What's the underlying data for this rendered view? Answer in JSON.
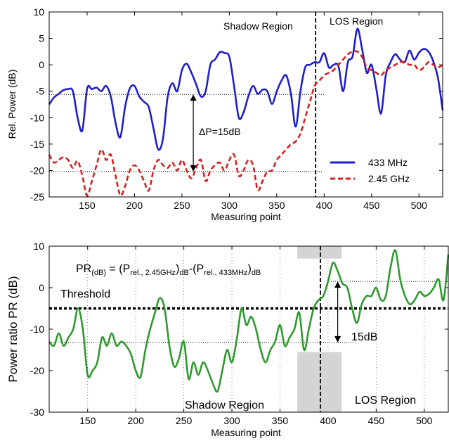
{
  "colors": {
    "blue": "#1f1fc8",
    "red": "#d42020",
    "green": "#2e9a2e",
    "shade": "#d4d4d4"
  },
  "chart_data": [
    {
      "type": "line",
      "xlabel": "Measuring point",
      "ylabel": "Rel. Power (dB)",
      "xlim": [
        110,
        525
      ],
      "ylim": [
        -25,
        10
      ],
      "xticks": [
        150,
        200,
        250,
        300,
        350,
        400,
        450,
        500
      ],
      "yticks": [
        -25,
        -20,
        -15,
        -10,
        -5,
        0,
        5,
        10
      ],
      "grid": false,
      "legend": "bottom-right",
      "annotations": {
        "shadow": "Shadow Region",
        "los": "LOS Region",
        "deltap": "ΔP=15dB"
      },
      "reference_lines": {
        "upper_y": -5.6,
        "lower_y": -20.2,
        "boundary_x": 391
      },
      "series": [
        {
          "name": "433 MHz",
          "color": "#1f1fc8",
          "style": "solid",
          "x": [
            110,
            115,
            120,
            125,
            130,
            135,
            140,
            145,
            150,
            155,
            160,
            165,
            170,
            175,
            180,
            185,
            190,
            195,
            200,
            205,
            210,
            215,
            220,
            225,
            230,
            235,
            240,
            245,
            250,
            255,
            260,
            265,
            270,
            275,
            280,
            285,
            290,
            295,
            300,
            305,
            310,
            315,
            320,
            325,
            330,
            335,
            340,
            345,
            350,
            355,
            360,
            365,
            370,
            375,
            380,
            385,
            390,
            395,
            400,
            405,
            410,
            415,
            420,
            425,
            430,
            435,
            440,
            445,
            450,
            455,
            460,
            465,
            470,
            475,
            480,
            485,
            490,
            495,
            500,
            505,
            510,
            515,
            520,
            525
          ],
          "y": [
            -7.5,
            -6.2,
            -5.5,
            -4.8,
            -4.6,
            -5,
            -10,
            -12.4,
            -4.5,
            -4.6,
            -4.3,
            -5,
            -4,
            -6,
            -11,
            -13.7,
            -8,
            -4.5,
            -4,
            -6,
            -7,
            -8,
            -12,
            -16,
            -14,
            -6,
            -3.5,
            -5,
            -1,
            0.2,
            -1.5,
            -3.7,
            -6,
            -5,
            0,
            1,
            2.4,
            2.2,
            1.5,
            -4,
            -10,
            -9,
            -6,
            -4,
            -5.5,
            -4.7,
            -5,
            -7.4,
            -5,
            -3,
            -2,
            -5.5,
            -11.7,
            -5,
            -0.5,
            0,
            0.5,
            0.5,
            2.2,
            -0.5,
            0,
            -0.2,
            -5,
            0.5,
            1.6,
            6.8,
            3,
            -1.5,
            0,
            -4.5,
            -9.2,
            -2,
            0.5,
            2,
            1,
            0.5,
            2.7,
            1,
            2.3,
            3,
            2.5,
            0.7,
            -2.5,
            -8.6
          ]
        },
        {
          "name": "2.45 GHz",
          "color": "#d42020",
          "style": "dashed",
          "x": [
            110,
            115,
            120,
            125,
            130,
            135,
            140,
            145,
            150,
            155,
            160,
            165,
            170,
            175,
            180,
            185,
            190,
            195,
            200,
            205,
            210,
            215,
            220,
            225,
            230,
            235,
            240,
            245,
            250,
            255,
            260,
            265,
            270,
            275,
            280,
            285,
            290,
            295,
            300,
            305,
            310,
            315,
            320,
            325,
            330,
            335,
            340,
            345,
            350,
            355,
            360,
            365,
            370,
            375,
            380,
            385,
            390,
            395,
            400,
            405,
            410,
            415,
            420,
            425,
            430,
            435,
            440,
            445,
            450,
            455,
            460,
            465,
            470,
            475,
            480,
            485,
            490,
            495,
            500,
            505,
            510,
            515,
            520,
            525
          ],
          "y": [
            -17,
            -18.5,
            -18,
            -17.5,
            -18,
            -19.5,
            -18.2,
            -21,
            -24.8,
            -22,
            -19,
            -16,
            -18,
            -17,
            -21,
            -24.7,
            -23,
            -20,
            -19,
            -20,
            -22,
            -23.8,
            -20,
            -18,
            -19,
            -19.5,
            -18.5,
            -20,
            -18,
            -20,
            -21.5,
            -19.5,
            -18,
            -22,
            -20,
            -19,
            -18.5,
            -20,
            -18,
            -17,
            -21,
            -20,
            -18,
            -19,
            -23.7,
            -22,
            -20.2,
            -20,
            -18,
            -17,
            -16,
            -15,
            -14.5,
            -13,
            -10,
            -7,
            -4,
            -3,
            -2,
            -1.5,
            -1,
            0,
            1,
            2,
            2.5,
            2.5,
            1.5,
            -0.5,
            -1,
            -1.5,
            -2,
            -1,
            -0.5,
            0,
            0.5,
            0.5,
            0,
            0,
            -1,
            -0.5,
            0.5,
            0,
            -0.5,
            0
          ]
        }
      ]
    },
    {
      "type": "line",
      "xlabel": "Measuring point",
      "ylabel": "Power ratio PR (dB)",
      "xlim": [
        110,
        525
      ],
      "ylim": [
        -30,
        10
      ],
      "xticks": [
        150,
        200,
        250,
        300,
        350,
        400,
        450,
        500
      ],
      "yticks": [
        -30,
        -20,
        -10,
        0,
        10
      ],
      "grid": "vertical dotted",
      "annotations": {
        "threshold": "Threshold",
        "shadow": "Shadow Region",
        "los": "LOS Region",
        "db15": "15dB",
        "formula": {
          "pr": "PR",
          "pr_sub": "(dB)",
          "eq": " = (P",
          "rel1": "rel., 2.45GHz",
          "close1": ")",
          "db1": "dB",
          "minus": "-(P",
          "rel2": "rel., 433MHz",
          "close2": ")",
          "db2": "dB"
        }
      },
      "reference_lines": {
        "threshold_y": -5,
        "upper_y": 1.5,
        "lower_y": -13.2,
        "boundary_x": 392
      },
      "shaded_band_x": [
        368,
        414
      ],
      "series": [
        {
          "name": "PR",
          "color": "#2e9a2e",
          "style": "solid",
          "x": [
            110,
            115,
            120,
            125,
            130,
            135,
            140,
            145,
            150,
            155,
            160,
            165,
            170,
            175,
            180,
            185,
            190,
            195,
            200,
            205,
            210,
            215,
            220,
            225,
            230,
            235,
            240,
            245,
            250,
            255,
            260,
            265,
            270,
            275,
            280,
            285,
            290,
            295,
            300,
            305,
            310,
            315,
            320,
            325,
            330,
            335,
            340,
            345,
            350,
            355,
            360,
            365,
            370,
            375,
            380,
            385,
            390,
            395,
            400,
            405,
            410,
            415,
            420,
            425,
            430,
            435,
            440,
            445,
            450,
            455,
            460,
            465,
            470,
            475,
            480,
            485,
            490,
            495,
            500,
            505,
            510,
            515,
            520,
            525
          ],
          "y": [
            -13,
            -14,
            -11,
            -14,
            -12,
            -10,
            -5,
            -10,
            -21,
            -20,
            -18,
            -12,
            -14,
            -11,
            -14,
            -13,
            -14,
            -16,
            -20,
            -21.5,
            -15,
            -10,
            -6,
            -2.5,
            -5,
            -14,
            -19,
            -17,
            -13,
            -22,
            -18,
            -21,
            -18,
            -20,
            -23,
            -25,
            -20,
            -15,
            -18,
            -12.5,
            -5,
            -9,
            -7,
            -10,
            -15,
            -18,
            -15,
            -13,
            -9,
            -14,
            -12,
            -10,
            -6,
            -15,
            -10,
            -5,
            -3,
            -2,
            1.5,
            6,
            4,
            1,
            0,
            -5,
            -8.5,
            -4,
            -2,
            -2,
            0,
            -3,
            -2,
            5,
            9,
            2,
            -2,
            -4,
            -3,
            -1,
            -2,
            -1.5,
            0,
            2,
            -3,
            8
          ]
        }
      ]
    }
  ]
}
